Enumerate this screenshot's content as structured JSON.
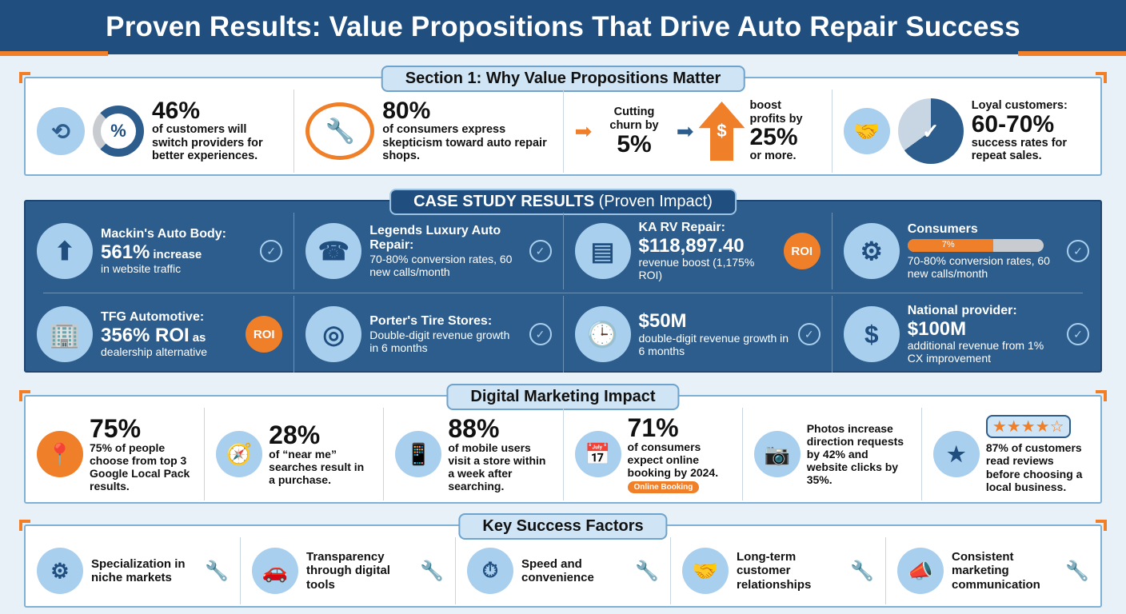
{
  "title": "Proven Results: Value Propositions That Drive Auto Repair Success",
  "section1": {
    "label": "Section 1: Why Value Propositions Matter",
    "items": [
      {
        "stat": "46%",
        "text": "of customers will switch providers for better experiences.",
        "icon": "percent-circle-icon"
      },
      {
        "stat": "80%",
        "text": "of consumers express skepticism toward auto repair shops.",
        "icon": "mechanic-icon"
      },
      {
        "pre": "Cutting churn by",
        "stat": "5%",
        "pre2": "boost profits by",
        "stat2": "25%",
        "post": "or more.",
        "icon": "dollar-arrow-icon"
      },
      {
        "pre": "Loyal customers:",
        "stat": "60-70%",
        "text": "success rates for repeat sales.",
        "icon": "pie-chart-icon"
      }
    ]
  },
  "case": {
    "label_bold": "CASE STUDY RESULTS",
    "label_light": "(Proven Impact)",
    "items": [
      {
        "head": "Mackin's Auto Body:",
        "stat": "561%",
        "stat_suffix": "increase",
        "text": "in website traffic",
        "icon": "website-growth-icon"
      },
      {
        "head": "Legends Luxury Auto Repair:",
        "text": "70-80% conversion rates, 60 new calls/month",
        "icon": "phone-icon"
      },
      {
        "head": "KA RV Repair:",
        "stat": "$118,897.40",
        "text": "revenue boost (1,175% ROI)",
        "badge": "ROI",
        "icon": "money-stack-icon"
      },
      {
        "head": "Consumers",
        "progress_label": "7%",
        "progress": 7,
        "text": "70-80% conversion rates, 60 new calls/month",
        "icon": "browser-gear-icon"
      },
      {
        "head": "TFG Automotive:",
        "stat": "356% ROI",
        "stat_suffix": "as",
        "text": "dealership alternative",
        "badge": "ROI",
        "icon": "dealership-icon"
      },
      {
        "head": "Porter's Tire Stores:",
        "text": "Double-digit revenue growth in 6 months",
        "icon": "tire-icon"
      },
      {
        "stat": "$50M",
        "text": "double-digit revenue growth in 6 months",
        "icon": "clock-growth-icon"
      },
      {
        "head": "National provider:",
        "stat": "$100M",
        "text": "additional revenue from 1% CX improvement",
        "icon": "dollar-growth-icon"
      }
    ]
  },
  "digital": {
    "label": "Digital Marketing Impact",
    "items": [
      {
        "stat": "75%",
        "text": "75% of people choose from top 3 Google Local Pack results.",
        "icon": "map-pin-search-icon"
      },
      {
        "stat": "28%",
        "text": "of “near me” searches result in a purchase.",
        "icon": "compass-pin-icon"
      },
      {
        "stat": "88%",
        "text": "of mobile users visit a store within a week after searching.",
        "icon": "phone-map-icon"
      },
      {
        "stat": "71%",
        "text": "of consumers expect online booking by 2024.",
        "button": "Online Booking",
        "icon": "calendar-clock-icon"
      },
      {
        "text": "Photos increase direction requests by 42% and website clicks by 35%.",
        "icon": "camera-photos-icon"
      },
      {
        "text": "87% of customers read reviews before choosing a local business.",
        "rating": 4,
        "icon": "star-review-icon"
      }
    ]
  },
  "factors": {
    "label": "Key Success Factors",
    "items": [
      {
        "text": "Specialization in niche markets",
        "icon": "gear-target-icon"
      },
      {
        "text": "Transparency through digital tools",
        "icon": "tablet-car-icon"
      },
      {
        "text": "Speed and convenience",
        "icon": "stopwatch-car-icon"
      },
      {
        "text": "Long-term customer relationships",
        "icon": "handshake-heart-icon"
      },
      {
        "text": "Consistent marketing communication",
        "icon": "megaphone-icon"
      }
    ]
  },
  "colors": {
    "navy": "#1f4e7f",
    "orange": "#f07f2a",
    "light_blue": "#cfe4f4",
    "panel_blue": "#2c5d8c"
  }
}
